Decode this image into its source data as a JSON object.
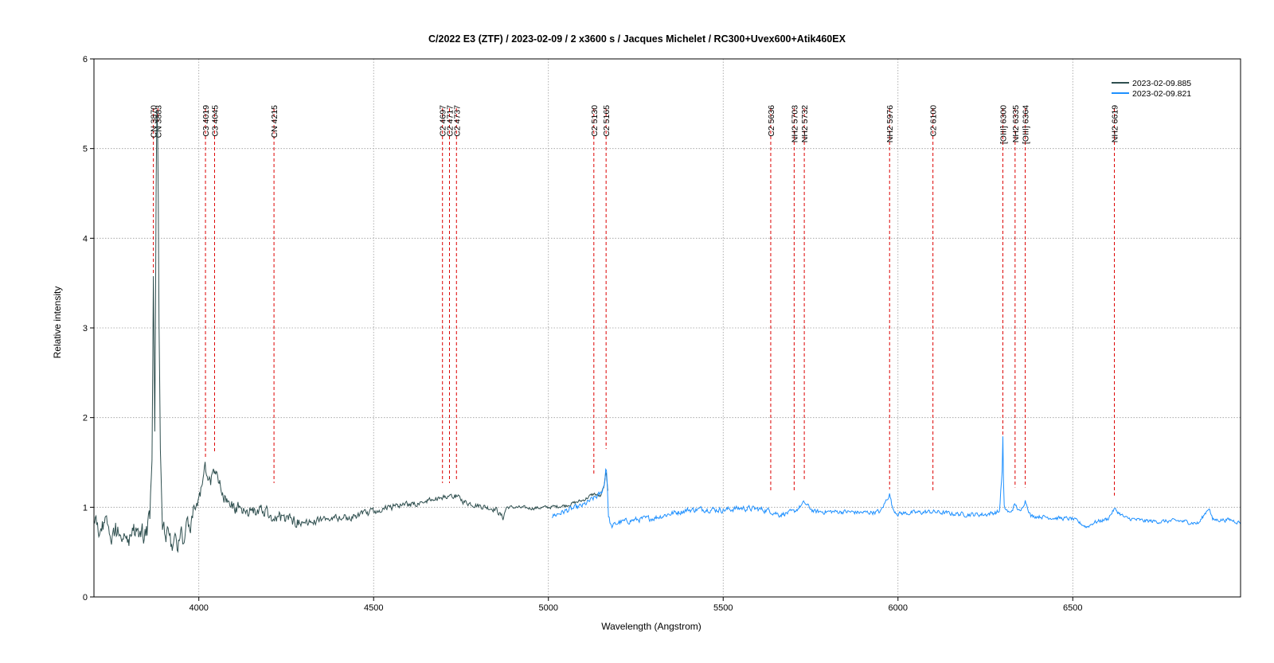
{
  "chart_data": {
    "type": "line",
    "title": "C/2022 E3 (ZTF) / 2023-02-09 / 2 x3600 s / Jacques Michelet / RC300+Uvex600+Atik460EX",
    "xlabel": "Wavelength (Angstrom)",
    "ylabel": "Relative intensity",
    "xlim": [
      3700,
      6980
    ],
    "ylim": [
      0,
      6
    ],
    "xticks": [
      4000,
      4500,
      5000,
      5500,
      6000,
      6500
    ],
    "yticks": [
      0,
      1,
      2,
      3,
      4,
      5,
      6
    ],
    "grid": true,
    "legend_position": "top-right",
    "series": [
      {
        "name": "2023-02-09.885",
        "color": "#2f4f4f",
        "x_range": [
          3700,
          5170
        ],
        "noise": [
          0.2,
          0.11,
          0.06,
          0.05,
          0.03
        ],
        "points": [
          [
            3700,
            0.78
          ],
          [
            3740,
            0.75
          ],
          [
            3780,
            0.7
          ],
          [
            3820,
            0.68
          ],
          [
            3850,
            0.72
          ],
          [
            3860,
            0.82
          ],
          [
            3866,
            1.6
          ],
          [
            3870,
            3.6
          ],
          [
            3874,
            1.8
          ],
          [
            3878,
            4.5
          ],
          [
            3880,
            5.3
          ],
          [
            3883,
            5.25
          ],
          [
            3886,
            3.2
          ],
          [
            3890,
            1.6
          ],
          [
            3895,
            0.85
          ],
          [
            3900,
            0.8
          ],
          [
            3920,
            0.62
          ],
          [
            3940,
            0.6
          ],
          [
            3960,
            0.66
          ],
          [
            3980,
            0.88
          ],
          [
            4000,
            1.05
          ],
          [
            4019,
            1.45
          ],
          [
            4025,
            1.25
          ],
          [
            4035,
            1.3
          ],
          [
            4045,
            1.42
          ],
          [
            4055,
            1.3
          ],
          [
            4080,
            1.05
          ],
          [
            4120,
            0.98
          ],
          [
            4160,
            0.95
          ],
          [
            4200,
            0.95
          ],
          [
            4215,
            0.85
          ],
          [
            4240,
            0.9
          ],
          [
            4300,
            0.82
          ],
          [
            4350,
            0.86
          ],
          [
            4400,
            0.88
          ],
          [
            4450,
            0.9
          ],
          [
            4500,
            0.95
          ],
          [
            4550,
            1.0
          ],
          [
            4600,
            1.03
          ],
          [
            4650,
            1.06
          ],
          [
            4697,
            1.12
          ],
          [
            4717,
            1.1
          ],
          [
            4737,
            1.12
          ],
          [
            4760,
            1.06
          ],
          [
            4800,
            1.02
          ],
          [
            4850,
            0.98
          ],
          [
            4870,
            0.88
          ],
          [
            4880,
            1.0
          ],
          [
            4900,
            1.0
          ],
          [
            4950,
            0.99
          ],
          [
            5000,
            1.0
          ],
          [
            5050,
            1.02
          ],
          [
            5100,
            1.08
          ],
          [
            5130,
            1.15
          ],
          [
            5150,
            1.12
          ],
          [
            5160,
            1.25
          ],
          [
            5165,
            1.4
          ],
          [
            5170,
            1.2
          ]
        ]
      },
      {
        "name": "2023-02-09.821",
        "color": "#1e90ff",
        "x_range": [
          5010,
          6980
        ],
        "noise": [
          0.05,
          0.04,
          0.035
        ],
        "points": [
          [
            5010,
            0.9
          ],
          [
            5050,
            0.96
          ],
          [
            5100,
            1.02
          ],
          [
            5130,
            1.1
          ],
          [
            5150,
            1.15
          ],
          [
            5160,
            1.25
          ],
          [
            5165,
            1.48
          ],
          [
            5168,
            1.3
          ],
          [
            5172,
            0.9
          ],
          [
            5180,
            0.78
          ],
          [
            5200,
            0.83
          ],
          [
            5250,
            0.86
          ],
          [
            5300,
            0.88
          ],
          [
            5350,
            0.93
          ],
          [
            5400,
            0.97
          ],
          [
            5450,
            0.98
          ],
          [
            5500,
            0.97
          ],
          [
            5550,
            0.99
          ],
          [
            5600,
            0.98
          ],
          [
            5636,
            0.96
          ],
          [
            5660,
            0.92
          ],
          [
            5703,
            0.95
          ],
          [
            5732,
            1.05
          ],
          [
            5760,
            0.95
          ],
          [
            5800,
            0.95
          ],
          [
            5850,
            0.95
          ],
          [
            5900,
            0.94
          ],
          [
            5950,
            0.95
          ],
          [
            5976,
            1.15
          ],
          [
            5985,
            0.98
          ],
          [
            6000,
            0.93
          ],
          [
            6050,
            0.94
          ],
          [
            6100,
            0.95
          ],
          [
            6150,
            0.93
          ],
          [
            6200,
            0.92
          ],
          [
            6250,
            0.92
          ],
          [
            6290,
            0.95
          ],
          [
            6298,
            1.4
          ],
          [
            6300,
            1.78
          ],
          [
            6303,
            1.0
          ],
          [
            6320,
            0.93
          ],
          [
            6335,
            1.03
          ],
          [
            6350,
            0.94
          ],
          [
            6364,
            1.08
          ],
          [
            6380,
            0.9
          ],
          [
            6400,
            0.9
          ],
          [
            6450,
            0.88
          ],
          [
            6500,
            0.87
          ],
          [
            6540,
            0.78
          ],
          [
            6560,
            0.83
          ],
          [
            6600,
            0.87
          ],
          [
            6619,
            0.98
          ],
          [
            6650,
            0.88
          ],
          [
            6700,
            0.85
          ],
          [
            6750,
            0.84
          ],
          [
            6800,
            0.85
          ],
          [
            6860,
            0.82
          ],
          [
            6890,
            1.0
          ],
          [
            6900,
            0.86
          ],
          [
            6950,
            0.86
          ],
          [
            6980,
            0.83
          ]
        ]
      }
    ],
    "line_markers": [
      {
        "label": "CN 3870",
        "wavelength": 3870,
        "y_bottom": 3.6
      },
      {
        "label": "CN 3883",
        "wavelength": 3883,
        "y_bottom": 5.3
      },
      {
        "label": "C3 4019",
        "wavelength": 4019,
        "y_bottom": 1.55
      },
      {
        "label": "C3 4045",
        "wavelength": 4045,
        "y_bottom": 1.6
      },
      {
        "label": "CN 4215",
        "wavelength": 4215,
        "y_bottom": 1.27
      },
      {
        "label": "C2 4697",
        "wavelength": 4697,
        "y_bottom": 1.27
      },
      {
        "label": "C2 4717",
        "wavelength": 4717,
        "y_bottom": 1.27
      },
      {
        "label": "C2 4737",
        "wavelength": 4737,
        "y_bottom": 1.3
      },
      {
        "label": "C2 5130",
        "wavelength": 5130,
        "y_bottom": 1.35
      },
      {
        "label": "C2 5165",
        "wavelength": 5165,
        "y_bottom": 1.65
      },
      {
        "label": "C2 5636",
        "wavelength": 5636,
        "y_bottom": 1.18
      },
      {
        "label": "NH2 5703",
        "wavelength": 5703,
        "y_bottom": 1.18
      },
      {
        "label": "NH2 5732",
        "wavelength": 5732,
        "y_bottom": 1.3
      },
      {
        "label": "NH2 5976",
        "wavelength": 5976,
        "y_bottom": 1.2
      },
      {
        "label": "C2 6100",
        "wavelength": 6100,
        "y_bottom": 1.18
      },
      {
        "label": "[OIII] 6300",
        "wavelength": 6300,
        "y_bottom": 1.8
      },
      {
        "label": "NH2 6335",
        "wavelength": 6335,
        "y_bottom": 1.22
      },
      {
        "label": "[OIII] 6364",
        "wavelength": 6364,
        "y_bottom": 1.22
      },
      {
        "label": "NH2 6619",
        "wavelength": 6619,
        "y_bottom": 1.13
      }
    ],
    "marker_color": "#dd0000",
    "marker_top": 5.45
  }
}
